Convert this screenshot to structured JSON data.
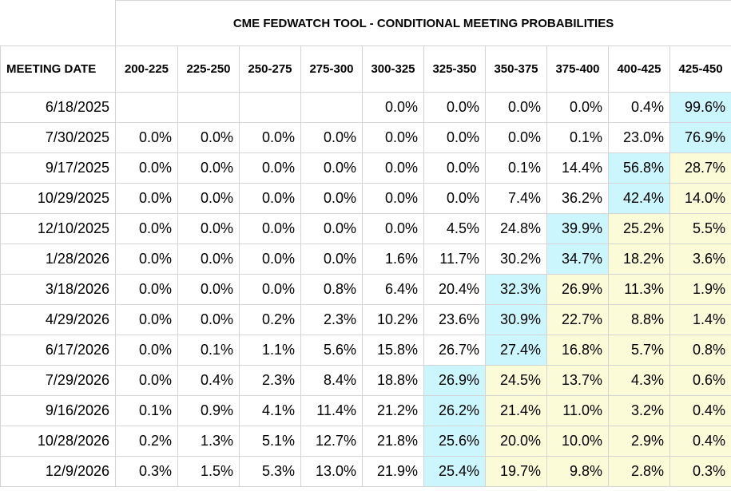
{
  "title": "CME FEDWATCH TOOL - CONDITIONAL MEETING PROBABILITIES",
  "colors": {
    "max_highlight": "#ccf6fd",
    "above_max": "#fbfbd7",
    "grid": "#d4d4d4"
  },
  "chart_data": {
    "type": "table",
    "title": "CME FEDWATCH TOOL - CONDITIONAL MEETING PROBABILITIES",
    "row_header": "MEETING DATE",
    "columns": [
      "200-225",
      "225-250",
      "250-275",
      "275-300",
      "300-325",
      "325-350",
      "350-375",
      "375-400",
      "400-425",
      "425-450"
    ],
    "rows": [
      {
        "date": "6/18/2025",
        "values": [
          "",
          "",
          "",
          "",
          "0.0%",
          "0.0%",
          "0.0%",
          "0.0%",
          "0.4%",
          "99.6%"
        ]
      },
      {
        "date": "7/30/2025",
        "values": [
          "0.0%",
          "0.0%",
          "0.0%",
          "0.0%",
          "0.0%",
          "0.0%",
          "0.0%",
          "0.1%",
          "23.0%",
          "76.9%"
        ]
      },
      {
        "date": "9/17/2025",
        "values": [
          "0.0%",
          "0.0%",
          "0.0%",
          "0.0%",
          "0.0%",
          "0.0%",
          "0.1%",
          "14.4%",
          "56.8%",
          "28.7%"
        ]
      },
      {
        "date": "10/29/2025",
        "values": [
          "0.0%",
          "0.0%",
          "0.0%",
          "0.0%",
          "0.0%",
          "0.0%",
          "7.4%",
          "36.2%",
          "42.4%",
          "14.0%"
        ]
      },
      {
        "date": "12/10/2025",
        "values": [
          "0.0%",
          "0.0%",
          "0.0%",
          "0.0%",
          "0.0%",
          "4.5%",
          "24.8%",
          "39.9%",
          "25.2%",
          "5.5%"
        ]
      },
      {
        "date": "1/28/2026",
        "values": [
          "0.0%",
          "0.0%",
          "0.0%",
          "0.0%",
          "1.6%",
          "11.7%",
          "30.2%",
          "34.7%",
          "18.2%",
          "3.6%"
        ]
      },
      {
        "date": "3/18/2026",
        "values": [
          "0.0%",
          "0.0%",
          "0.0%",
          "0.8%",
          "6.4%",
          "20.4%",
          "32.3%",
          "26.9%",
          "11.3%",
          "1.9%"
        ]
      },
      {
        "date": "4/29/2026",
        "values": [
          "0.0%",
          "0.0%",
          "0.2%",
          "2.3%",
          "10.2%",
          "23.6%",
          "30.9%",
          "22.7%",
          "8.8%",
          "1.4%"
        ]
      },
      {
        "date": "6/17/2026",
        "values": [
          "0.0%",
          "0.1%",
          "1.1%",
          "5.6%",
          "15.8%",
          "26.7%",
          "27.4%",
          "16.8%",
          "5.7%",
          "0.8%"
        ]
      },
      {
        "date": "7/29/2026",
        "values": [
          "0.0%",
          "0.4%",
          "2.3%",
          "8.4%",
          "18.8%",
          "26.9%",
          "24.5%",
          "13.7%",
          "4.3%",
          "0.6%"
        ]
      },
      {
        "date": "9/16/2026",
        "values": [
          "0.1%",
          "0.9%",
          "4.1%",
          "11.4%",
          "21.2%",
          "26.2%",
          "21.4%",
          "11.0%",
          "3.2%",
          "0.4%"
        ]
      },
      {
        "date": "10/28/2026",
        "values": [
          "0.2%",
          "1.3%",
          "5.1%",
          "12.7%",
          "21.8%",
          "25.6%",
          "20.0%",
          "10.0%",
          "2.9%",
          "0.4%"
        ]
      },
      {
        "date": "12/9/2026",
        "values": [
          "0.3%",
          "1.5%",
          "5.3%",
          "13.0%",
          "21.9%",
          "25.4%",
          "19.7%",
          "9.8%",
          "2.8%",
          "0.3%"
        ]
      }
    ]
  }
}
